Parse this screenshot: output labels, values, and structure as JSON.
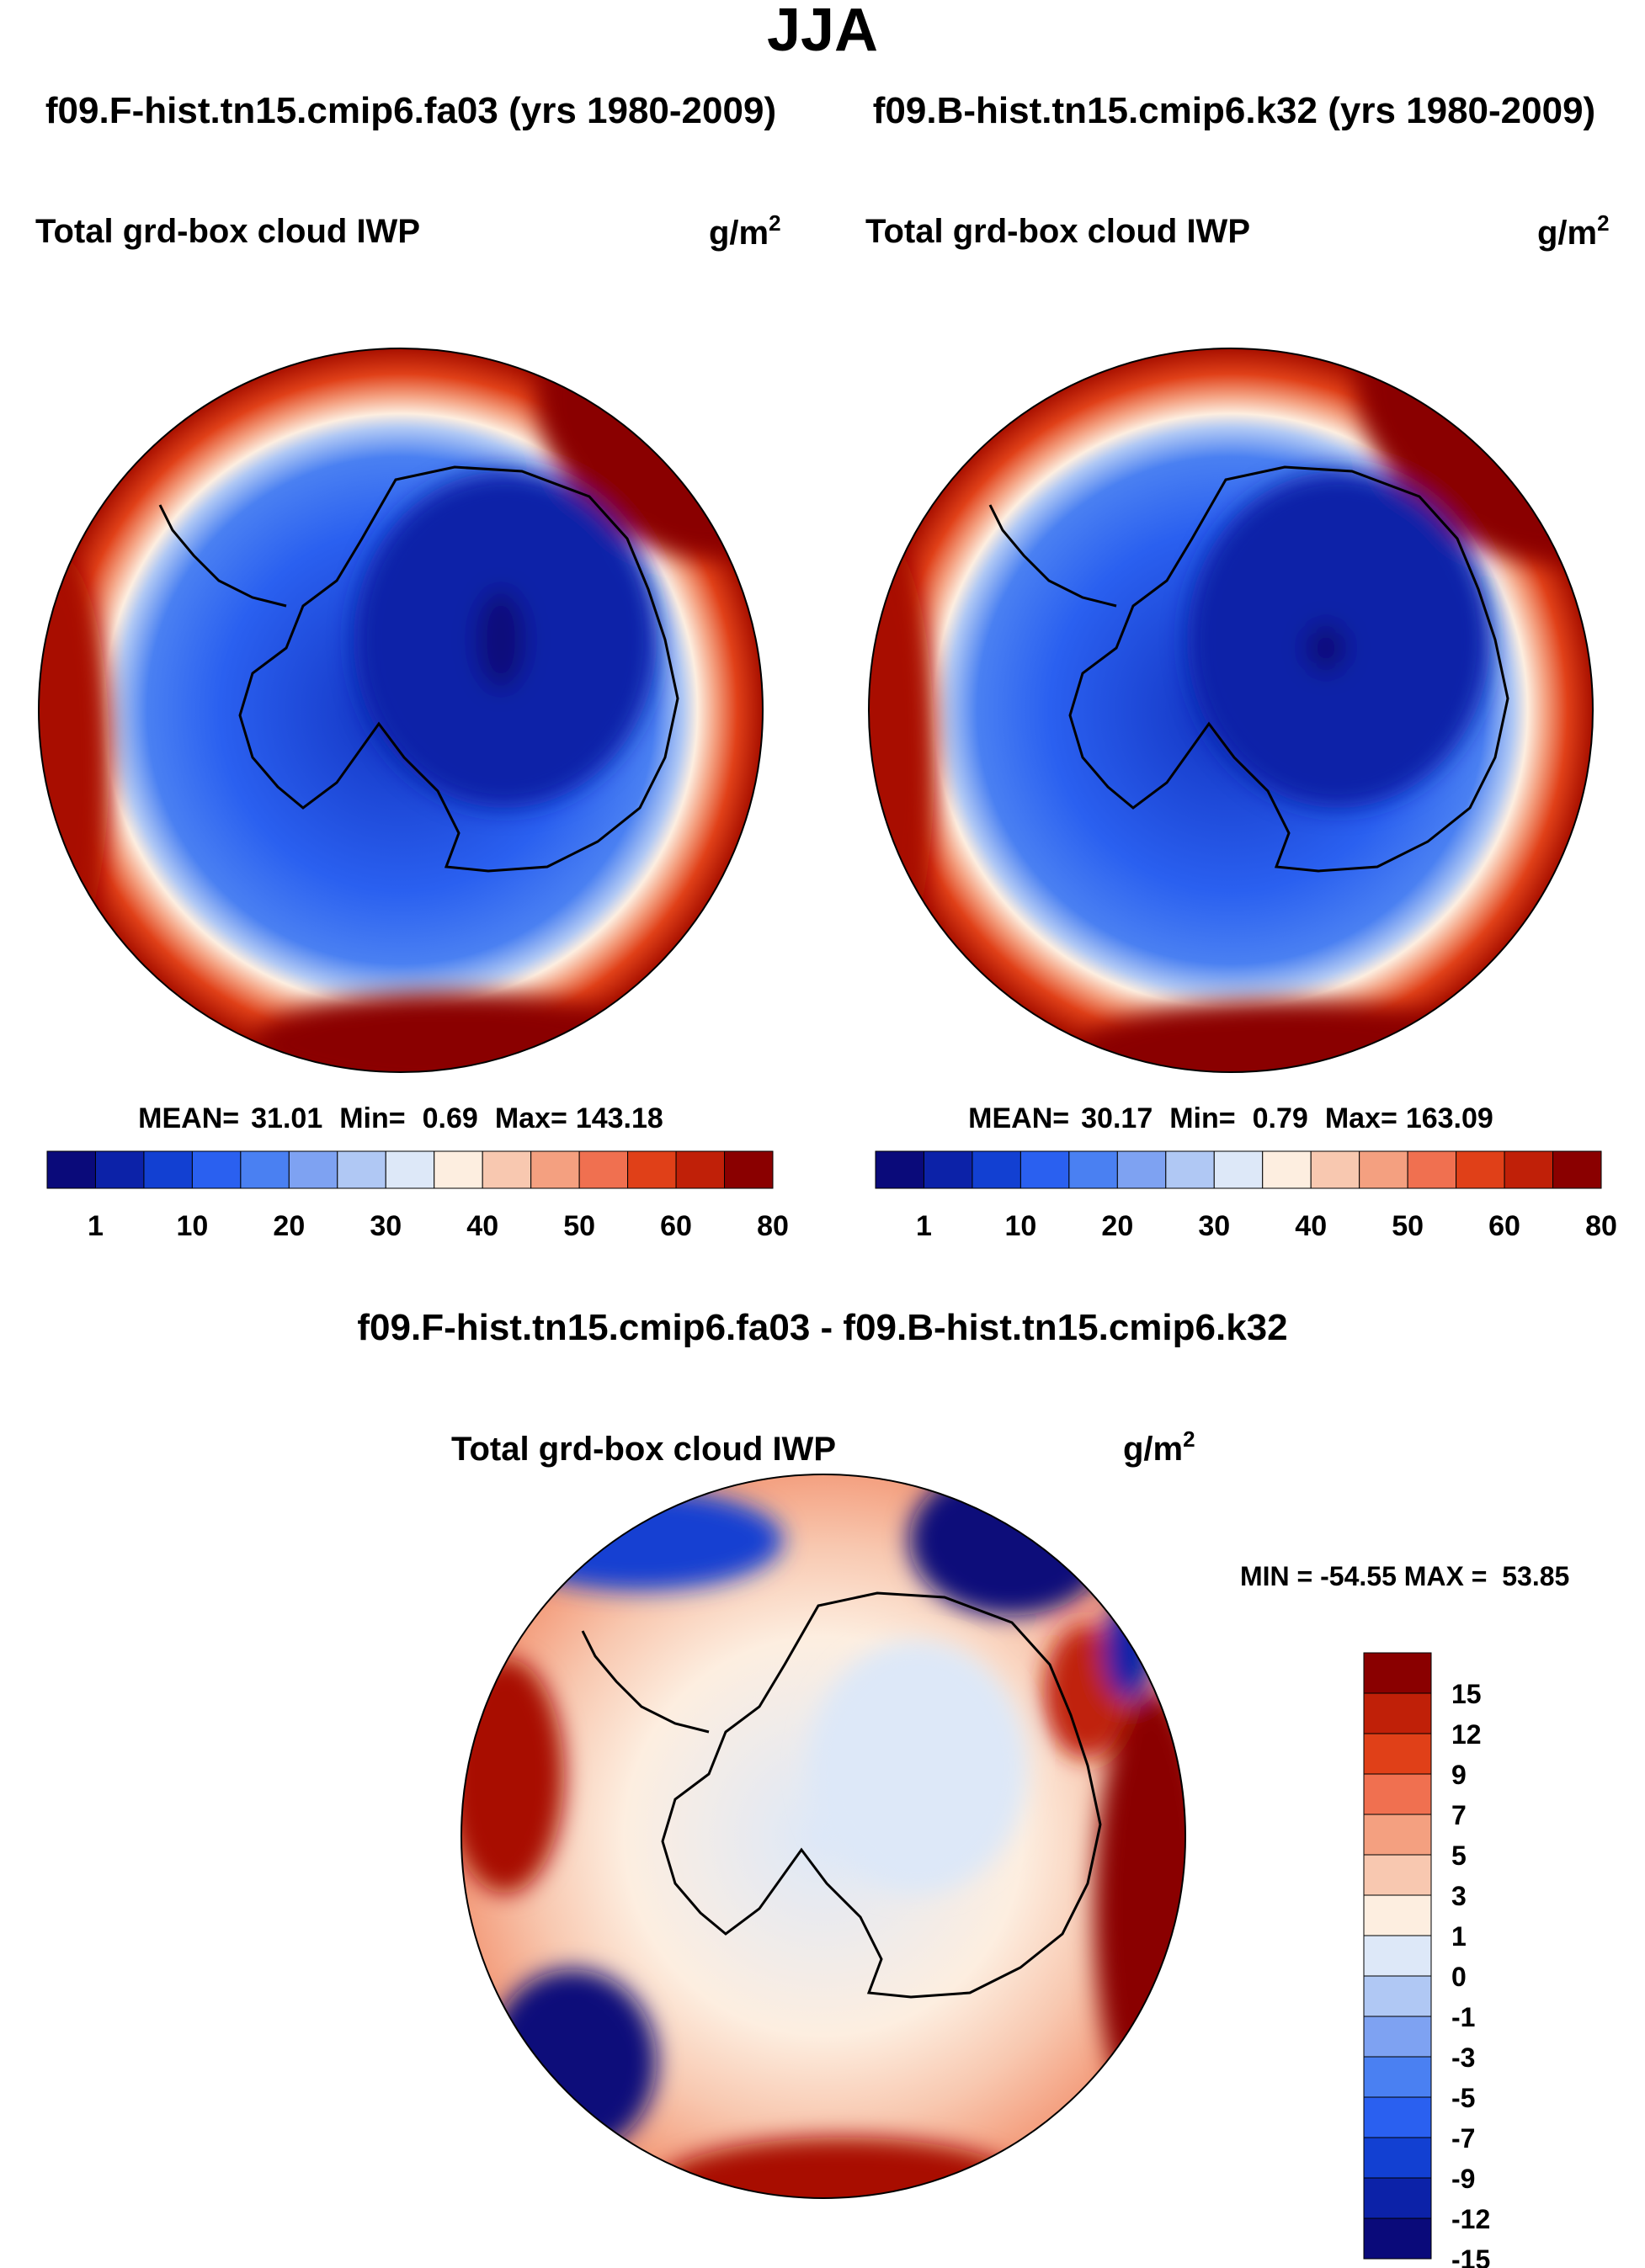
{
  "figure": {
    "season": "JJA",
    "subtitle_left": "f09.F-hist.tn15.cmip6.fa03 (yrs 1980-2009)",
    "subtitle_right": "f09.B-hist.tn15.cmip6.k32 (yrs 1980-2009)",
    "diff_title": "f09.F-hist.tn15.cmip6.fa03 - f09.B-hist.tn15.cmip6.k32"
  },
  "colors": {
    "seq": [
      "#0a0a7a",
      "#0c22a8",
      "#1240d2",
      "#2a60f0",
      "#4a80f2",
      "#7ea2f2",
      "#b0c8f4",
      "#dde8f8",
      "#fdeee0",
      "#f8c8b0",
      "#f4a080",
      "#f07050",
      "#e04018",
      "#c02008",
      "#8a0000"
    ],
    "div": [
      "#0a0a7a",
      "#0c22a8",
      "#1240d2",
      "#2a60f0",
      "#4a80f2",
      "#7ea2f2",
      "#b0c8f4",
      "#dde8f8",
      "#fdeee0",
      "#f8c8b0",
      "#f4a080",
      "#f07050",
      "#e04018",
      "#c02008",
      "#8a0000"
    ],
    "coast": "#000000"
  },
  "chart_data": [
    {
      "type": "heatmap",
      "projection": "south polar stereographic",
      "title": "Total grd-box cloud IWP",
      "units_base": "g/m",
      "units_exp": "2",
      "stats": {
        "mean_label": "MEAN=",
        "mean": "31.01",
        "min_label": "Min=",
        "min": "0.69",
        "max_label": "Max=",
        "max": "143.18"
      },
      "levels": [
        1,
        5,
        10,
        15,
        20,
        25,
        30,
        35,
        40,
        45,
        50,
        55,
        60,
        70,
        80
      ],
      "level_labels": [
        "1",
        "10",
        "20",
        "30",
        "40",
        "50",
        "60",
        "80"
      ]
    },
    {
      "type": "heatmap",
      "projection": "south polar stereographic",
      "title": "Total grd-box cloud IWP",
      "units_base": "g/m",
      "units_exp": "2",
      "stats": {
        "mean_label": "MEAN=",
        "mean": "30.17",
        "min_label": "Min=",
        "min": "0.79",
        "max_label": "Max=",
        "max": "163.09"
      },
      "levels": [
        1,
        5,
        10,
        15,
        20,
        25,
        30,
        35,
        40,
        45,
        50,
        55,
        60,
        70,
        80
      ],
      "level_labels": [
        "1",
        "10",
        "20",
        "30",
        "40",
        "50",
        "60",
        "80"
      ]
    },
    {
      "type": "heatmap",
      "projection": "south polar stereographic",
      "title": "Total grd-box cloud IWP",
      "units_base": "g/m",
      "units_exp": "2",
      "minmax_text": "MIN = -54.55 MAX =  53.85",
      "levels": [
        -15,
        -12,
        -9,
        -7,
        -5,
        -3,
        -1,
        0,
        1,
        3,
        5,
        7,
        9,
        12,
        15
      ],
      "level_labels": [
        "15",
        "12",
        "9",
        "7",
        "5",
        "3",
        "1",
        "0",
        "-1",
        "-3",
        "-5",
        "-7",
        "-9",
        "-12",
        "-15"
      ]
    }
  ]
}
